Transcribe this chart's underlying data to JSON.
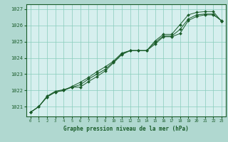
{
  "title": "Graphe pression niveau de la mer (hPa)",
  "outer_bg_color": "#b0d8d0",
  "plot_bg_color": "#d6efee",
  "grid_color": "#88ccbb",
  "line_color": "#1a5c2a",
  "x_ticks": [
    0,
    1,
    2,
    3,
    4,
    5,
    6,
    7,
    8,
    9,
    10,
    11,
    12,
    13,
    14,
    15,
    16,
    17,
    18,
    19,
    20,
    21,
    22,
    23
  ],
  "ylim": [
    1020.4,
    1027.3
  ],
  "yticks": [
    1021,
    1022,
    1023,
    1024,
    1025,
    1026,
    1027
  ],
  "series1": [
    1020.65,
    1021.0,
    1021.6,
    1021.9,
    1022.0,
    1022.2,
    1022.2,
    1022.55,
    1022.85,
    1023.2,
    1023.7,
    1024.2,
    1024.45,
    1024.45,
    1024.45,
    1024.85,
    1025.3,
    1025.3,
    1025.5,
    1026.3,
    1026.55,
    1026.65,
    1026.65,
    1026.3
  ],
  "series2": [
    1020.65,
    1021.0,
    1021.6,
    1021.9,
    1022.0,
    1022.25,
    1022.5,
    1022.8,
    1023.15,
    1023.45,
    1023.8,
    1024.3,
    1024.45,
    1024.45,
    1024.45,
    1025.05,
    1025.45,
    1025.45,
    1026.05,
    1026.65,
    1026.8,
    1026.85,
    1026.85,
    1026.25
  ],
  "series3": [
    1020.65,
    1021.0,
    1021.65,
    1021.95,
    1022.05,
    1022.2,
    1022.35,
    1022.7,
    1023.0,
    1023.3,
    1023.75,
    1024.25,
    1024.45,
    1024.45,
    1024.45,
    1024.95,
    1025.35,
    1025.35,
    1025.75,
    1026.4,
    1026.65,
    1026.7,
    1026.7,
    1026.27
  ]
}
